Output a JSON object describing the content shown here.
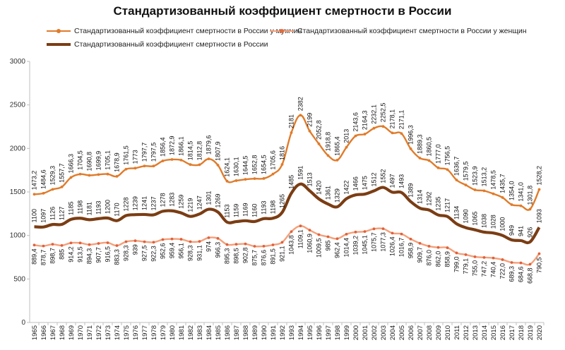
{
  "chart_data": {
    "type": "line",
    "title": "Стандартизованный коэффициент смертности в России",
    "xlabel": "",
    "ylabel": "",
    "ylim": [
      0,
      3000
    ],
    "yticks": [
      "0",
      "500",
      "1000",
      "1500",
      "2000",
      "2500",
      "3000"
    ],
    "grid": false,
    "legend_position": "top",
    "categories": [
      "1965",
      "1966",
      "1967",
      "1968",
      "1969",
      "1970",
      "1971",
      "1972",
      "1973",
      "1974",
      "1975",
      "1976",
      "1977",
      "1978",
      "1979",
      "1980",
      "1981",
      "1982",
      "1983",
      "1984",
      "1985",
      "1986",
      "1987",
      "1988",
      "1989",
      "1990",
      "1991",
      "1992",
      "1993",
      "1994",
      "1995",
      "1996",
      "1997",
      "1998",
      "1999",
      "2000",
      "2001",
      "2002",
      "2003",
      "2004",
      "2005",
      "2006",
      "2007",
      "2008",
      "2009",
      "2010",
      "2011",
      "2012",
      "2013",
      "2014",
      "2015",
      "2016",
      "2017",
      "2018",
      "2019",
      "2020"
    ],
    "series": [
      {
        "name": "Стандартизованный коэффициент смертности в России у мужчин",
        "color": "#E07B2A",
        "labels": [
          "1473,2",
          "1484,6",
          "1529,3",
          "1557,7",
          "1666,3",
          "1704,5",
          "1690,8",
          "1699,9",
          "1705,1",
          "1678,9",
          "1761,5",
          "1773",
          "1797,7",
          "1797,5",
          "1856,4",
          "1872,9",
          "1866,1",
          "1814,5",
          "1812,8",
          "1879,6",
          "1807,9",
          "1624,1",
          "1630,1",
          "1644,5",
          "1652,8",
          "1654,5",
          "1705,6",
          "1816",
          "2181",
          "2382",
          "2199",
          "2052,8",
          "1918,8",
          "1865,4",
          "2013",
          "2143,6",
          "2164,3",
          "2232,1",
          "2252,5",
          "2178,1",
          "2171,1",
          "1996,3",
          "1889,3",
          "1860,5",
          "1777,0",
          "1756,5",
          "1636,7",
          "1579,5",
          "1523,9",
          "1513,2",
          "1478,5",
          "1435,7",
          "1354,0",
          "1341,0",
          "1301,8",
          "1528,2"
        ],
        "values": [
          1473.2,
          1484.6,
          1529.3,
          1557.7,
          1666.3,
          1704.5,
          1690.8,
          1699.9,
          1705.1,
          1678.9,
          1761.5,
          1773,
          1797.7,
          1797.5,
          1856.4,
          1872.9,
          1866.1,
          1814.5,
          1812.8,
          1879.6,
          1807.9,
          1624.1,
          1630.1,
          1644.5,
          1652.8,
          1654.5,
          1705.6,
          1816,
          2181,
          2382,
          2199,
          2052.8,
          1918.8,
          1865.4,
          2013,
          2143.6,
          2164.3,
          2232.1,
          2252.5,
          2178.1,
          2171.1,
          1996.3,
          1889.3,
          1860.5,
          1777.0,
          1756.5,
          1636.7,
          1579.5,
          1523.9,
          1513.2,
          1478.5,
          1435.7,
          1354.0,
          1341.0,
          1301.8,
          1528.2
        ]
      },
      {
        "name": "Стандартизованный коэффициент смертности в России у женщин",
        "color": "#F4A07A",
        "labels": [
          "889,4",
          "878,7",
          "898,7",
          "885",
          "914,2",
          "913,5",
          "894,3",
          "907,7",
          "916,5",
          "883,3",
          "928,3",
          "939",
          "927,5",
          "922,3",
          "952,6",
          "959,4",
          "956,1",
          "928,3",
          "931,1",
          "974",
          "966,3",
          "895,3",
          "898,5",
          "902,8",
          "875,7",
          "876,6",
          "891,5",
          "921,1",
          "1043,8",
          "1109,1",
          "1060,9",
          "1009,5",
          "985",
          "962,4",
          "1014,4",
          "1039,2",
          "1045,1",
          "1075,7",
          "1077,3",
          "1026,4",
          "1016,7",
          "958,9",
          "909,7",
          "876,0",
          "862,0",
          "858,9",
          "799,0",
          "779,1",
          "755,0",
          "747,2",
          "740,4",
          "722,0",
          "689,3",
          "684,6",
          "668,8",
          "790,5"
        ],
        "values": [
          889.4,
          878.7,
          898.7,
          885,
          914.2,
          913.5,
          894.3,
          907.7,
          916.5,
          883.3,
          928.3,
          939,
          927.5,
          922.3,
          952.6,
          959.4,
          956.1,
          928.3,
          931.1,
          974,
          966.3,
          895.3,
          898.5,
          902.8,
          875.7,
          876.6,
          891.5,
          921.1,
          1043.8,
          1109.1,
          1060.9,
          1009.5,
          985,
          962.4,
          1014.4,
          1039.2,
          1045.1,
          1075.7,
          1077.3,
          1026.4,
          1016.7,
          958.9,
          909.7,
          876.0,
          862.0,
          858.9,
          799.0,
          779.1,
          755.0,
          747.2,
          740.4,
          722.0,
          689.3,
          684.6,
          668.8,
          790.5
        ]
      },
      {
        "name": "Стандартизованный коэффициент смертности в России",
        "color": "#7B3D14",
        "labels": [
          "1100",
          "1097",
          "1126",
          "1127",
          "1185",
          "1198",
          "1181",
          "1193",
          "1200",
          "1170",
          "1228",
          "1239",
          "1241",
          "1237",
          "1278",
          "1283",
          "1259",
          "1219",
          "1247",
          "1301",
          "1269",
          "1153",
          "1159",
          "1169",
          "1160",
          "1193",
          "1198",
          "1265",
          "1485",
          "1591",
          "1513",
          "1420",
          "1361",
          "1329",
          "1422",
          "1466",
          "1475",
          "1512",
          "1552",
          "1497",
          "1493",
          "1389",
          "1314",
          "1292",
          "1235",
          "1217",
          "1134",
          "1090",
          "1065",
          "1038",
          "1028",
          "1000",
          "949",
          "941",
          "926",
          "1093"
        ],
        "values": [
          1100,
          1097,
          1126,
          1127,
          1185,
          1198,
          1181,
          1193,
          1200,
          1170,
          1228,
          1239,
          1241,
          1237,
          1278,
          1283,
          1259,
          1219,
          1247,
          1301,
          1269,
          1153,
          1159,
          1169,
          1160,
          1193,
          1198,
          1265,
          1485,
          1591,
          1513,
          1420,
          1361,
          1329,
          1422,
          1466,
          1475,
          1512,
          1552,
          1497,
          1493,
          1389,
          1314,
          1292,
          1235,
          1217,
          1134,
          1090,
          1065,
          1038,
          1028,
          1000,
          949,
          941,
          926,
          1093
        ]
      }
    ]
  }
}
